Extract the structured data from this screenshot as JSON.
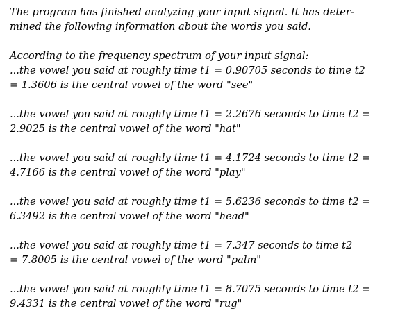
{
  "intro": {
    "line1": "The program has finished analyzing your input signal.  It has deter-",
    "line2": "mined the following information about the words you said."
  },
  "heading": "According to the frequency spectrum of your input signal:",
  "entries": [
    {
      "line1": "...the vowel you said at roughly time t1 = 0.90705 seconds to time t2",
      "line2": "= 1.3606 is the central vowel of the word \"see\""
    },
    {
      "line1": "...the vowel you said at roughly time t1 = 2.2676 seconds to time t2 =",
      "line2": "2.9025 is the central vowel of the word \"hat\""
    },
    {
      "line1": "...the vowel you said at roughly time t1 = 4.1724 seconds to time t2 =",
      "line2": "4.7166 is the central vowel of the word \"play\""
    },
    {
      "line1": "...the vowel you said at roughly time t1 = 5.6236 seconds to time t2 =",
      "line2": "6.3492 is the central vowel of the word \"head\""
    },
    {
      "line1": "...the vowel you said at roughly time t1 = 7.347 seconds to time t2",
      "line2": "= 7.8005 is the central vowel of the word \"palm\""
    },
    {
      "line1": "...the vowel you said at roughly time t1 = 8.7075 seconds to time t2 =",
      "line2": "9.4331 is the central vowel of the word \"rug\""
    }
  ]
}
